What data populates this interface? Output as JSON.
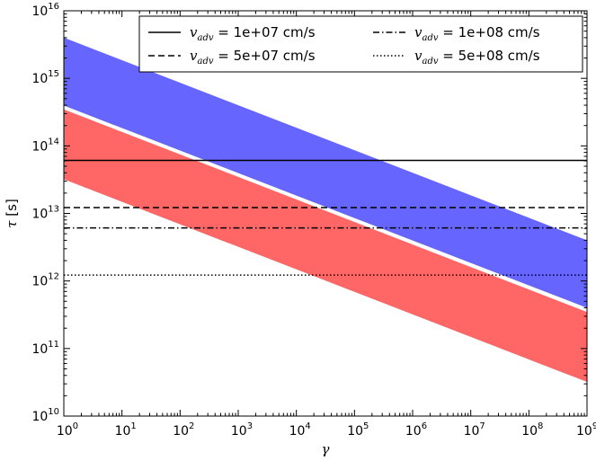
{
  "chart_data": {
    "type": "area",
    "xlabel": "γ",
    "ylabel_symbol": "τ",
    "ylabel_unit": " [s]",
    "x_scale": "log",
    "y_scale": "log",
    "xlim": [
      1,
      1000000000
    ],
    "ylim": [
      10000000000,
      10000000000000000
    ],
    "x_ticks": [
      {
        "base": "10",
        "exp": "0"
      },
      {
        "base": "10",
        "exp": "1"
      },
      {
        "base": "10",
        "exp": "2"
      },
      {
        "base": "10",
        "exp": "3"
      },
      {
        "base": "10",
        "exp": "4"
      },
      {
        "base": "10",
        "exp": "5"
      },
      {
        "base": "10",
        "exp": "6"
      },
      {
        "base": "10",
        "exp": "7"
      },
      {
        "base": "10",
        "exp": "8"
      },
      {
        "base": "10",
        "exp": "9"
      }
    ],
    "y_ticks": [
      {
        "base": "10",
        "exp": "10"
      },
      {
        "base": "10",
        "exp": "11"
      },
      {
        "base": "10",
        "exp": "12"
      },
      {
        "base": "10",
        "exp": "13"
      },
      {
        "base": "10",
        "exp": "14"
      },
      {
        "base": "10",
        "exp": "15"
      },
      {
        "base": "10",
        "exp": "16"
      }
    ],
    "grid": false,
    "legend_position": "top-right",
    "bands": [
      {
        "color": "#6666ff",
        "x": [
          1,
          1000000000
        ],
        "upper": [
          4000000000000000.0,
          4000000000000.0
        ],
        "lower": [
          390000000000000.0,
          400000000000.0
        ]
      },
      {
        "color": "#ff6666",
        "x": [
          1,
          1000000000
        ],
        "upper": [
          350000000000000.0,
          350000000000.0
        ],
        "lower": [
          32000000000000.0,
          32000000000.0
        ]
      }
    ],
    "divider": {
      "color": "#ffffff",
      "x": [
        1,
        1000000000
      ],
      "y": [
        370000000000000.0,
        370000000000.0
      ]
    },
    "hlines": [
      {
        "var": "v",
        "sub": "adv",
        "label": " = 1e+07 cm/s",
        "y": 61000000000000.0,
        "style": "solid"
      },
      {
        "var": "v",
        "sub": "adv",
        "label": " = 5e+07 cm/s",
        "y": 12200000000000.0,
        "style": "dashed"
      },
      {
        "var": "v",
        "sub": "adv",
        "label": " = 1e+08 cm/s",
        "y": 6100000000000.0,
        "style": "dashdot"
      },
      {
        "var": "v",
        "sub": "adv",
        "label": " = 5e+08 cm/s",
        "y": 1220000000000.0,
        "style": "dotted"
      }
    ]
  }
}
